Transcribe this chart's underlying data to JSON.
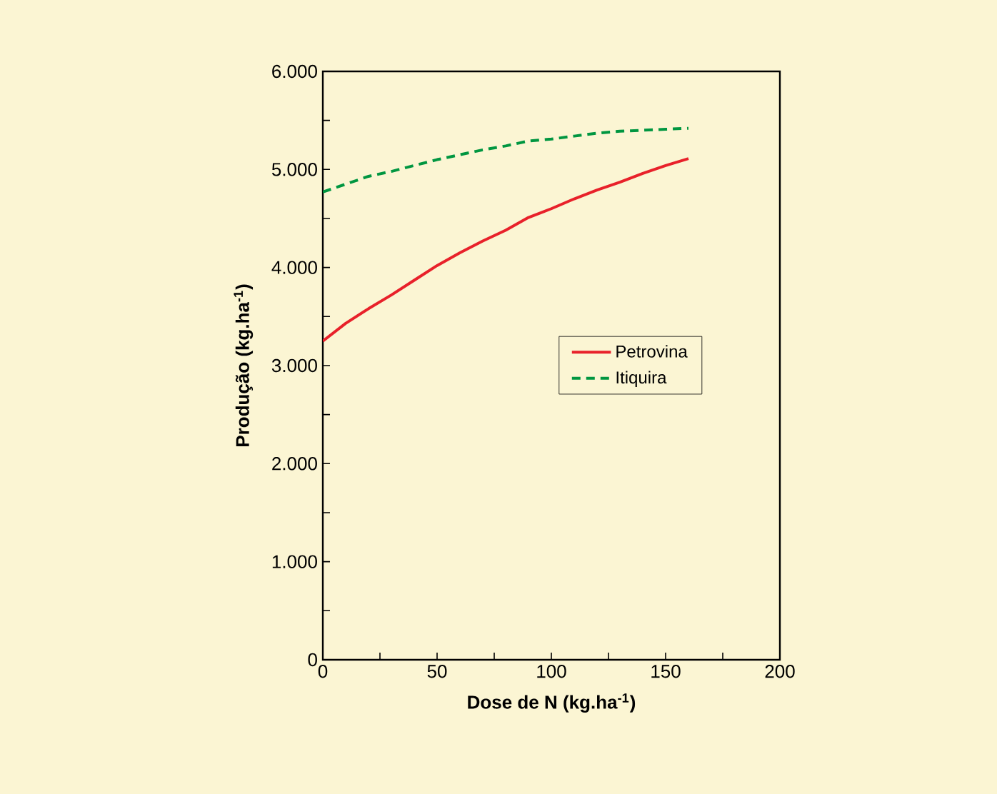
{
  "chart_data": {
    "type": "line",
    "xlabel": "Dose de N (kg.ha$^{-1}$)",
    "ylabel": "Produção (kg.ha$^{-1}$)",
    "xlim": [
      0,
      200
    ],
    "ylim": [
      0,
      6000
    ],
    "xticks": [
      0,
      {
        "value": 25,
        "label": null
      },
      50,
      {
        "value": 75,
        "label": null
      },
      100,
      {
        "value": 125,
        "label": null
      },
      150,
      {
        "value": 175,
        "label": null
      },
      200
    ],
    "yticks": [
      0,
      {
        "value": 500,
        "label": null
      },
      {
        "value": 1000,
        "label": "1.000"
      },
      {
        "value": 1500,
        "label": null
      },
      {
        "value": 2000,
        "label": "2.000"
      },
      {
        "value": 2500,
        "label": null
      },
      {
        "value": 3000,
        "label": "3.000"
      },
      {
        "value": 3500,
        "label": null
      },
      {
        "value": 4000,
        "label": "4.000"
      },
      {
        "value": 4500,
        "label": null
      },
      {
        "value": 5000,
        "label": "5.000"
      },
      {
        "value": 5500,
        "label": null
      },
      {
        "value": 6000,
        "label": "6.000"
      }
    ],
    "x": [
      0,
      10,
      20,
      30,
      40,
      50,
      60,
      70,
      80,
      90,
      100,
      110,
      120,
      130,
      140,
      150,
      160
    ],
    "legend": "right",
    "grid": false,
    "marker": "none",
    "series": [
      {
        "name": "Petrovina",
        "color": "#e8212a",
        "line_style": "solid",
        "values": [
          3250,
          3430,
          3580,
          3720,
          3870,
          4020,
          4150,
          4270,
          4380,
          4510,
          4600,
          4700,
          4790,
          4870,
          4960,
          5040,
          5110
        ]
      },
      {
        "name": "Itiquira",
        "color": "#009640",
        "line_style": "dashed",
        "values": [
          4770,
          4850,
          4930,
          4980,
          5040,
          5100,
          5150,
          5200,
          5240,
          5290,
          5310,
          5340,
          5370,
          5390,
          5400,
          5410,
          5420
        ]
      }
    ]
  }
}
